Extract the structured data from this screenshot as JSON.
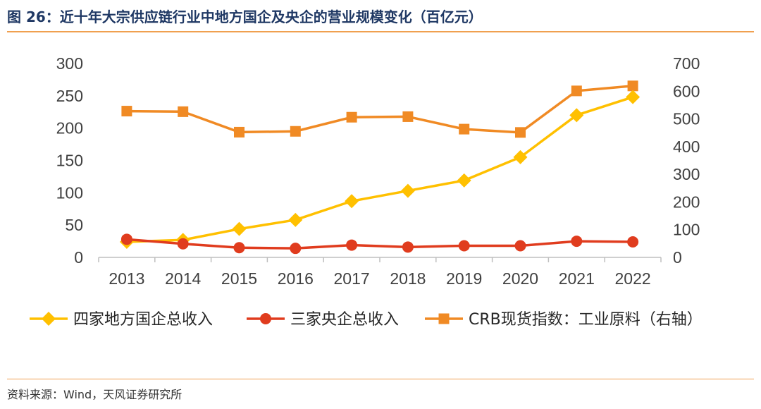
{
  "title": "图 26：近十年大宗供应链行业中地方国企及央企的营业规模变化（百亿元）",
  "source": "资料来源：Wind，天风证券研究所",
  "chart_data": {
    "type": "line",
    "categories": [
      "2013",
      "2014",
      "2015",
      "2016",
      "2017",
      "2018",
      "2019",
      "2020",
      "2021",
      "2022"
    ],
    "y_left": {
      "min": 0,
      "max": 300,
      "ticks": [
        "0",
        "50",
        "100",
        "150",
        "200",
        "250",
        "300"
      ]
    },
    "y_right": {
      "min": 0,
      "max": 700,
      "ticks": [
        "0",
        "100",
        "200",
        "300",
        "400",
        "500",
        "600",
        "700"
      ]
    },
    "grid": false,
    "legend_position": "bottom",
    "series": [
      {
        "name": "四家地方国企总收入",
        "axis": "left",
        "marker": "diamond",
        "color": "#ffc000",
        "values": [
          24,
          27,
          44,
          58,
          87,
          103,
          119,
          155,
          220,
          248
        ]
      },
      {
        "name": "三家央企总收入",
        "axis": "left",
        "marker": "circle",
        "color": "#e03c1e",
        "values": [
          28,
          21,
          15,
          14,
          19,
          16,
          18,
          18,
          25,
          24
        ]
      },
      {
        "name": "CRB现货指数：工业原料（右轴）",
        "axis": "right",
        "marker": "square",
        "color": "#f08a24",
        "values": [
          528,
          526,
          452,
          455,
          506,
          508,
          463,
          451,
          601,
          619
        ]
      }
    ]
  }
}
